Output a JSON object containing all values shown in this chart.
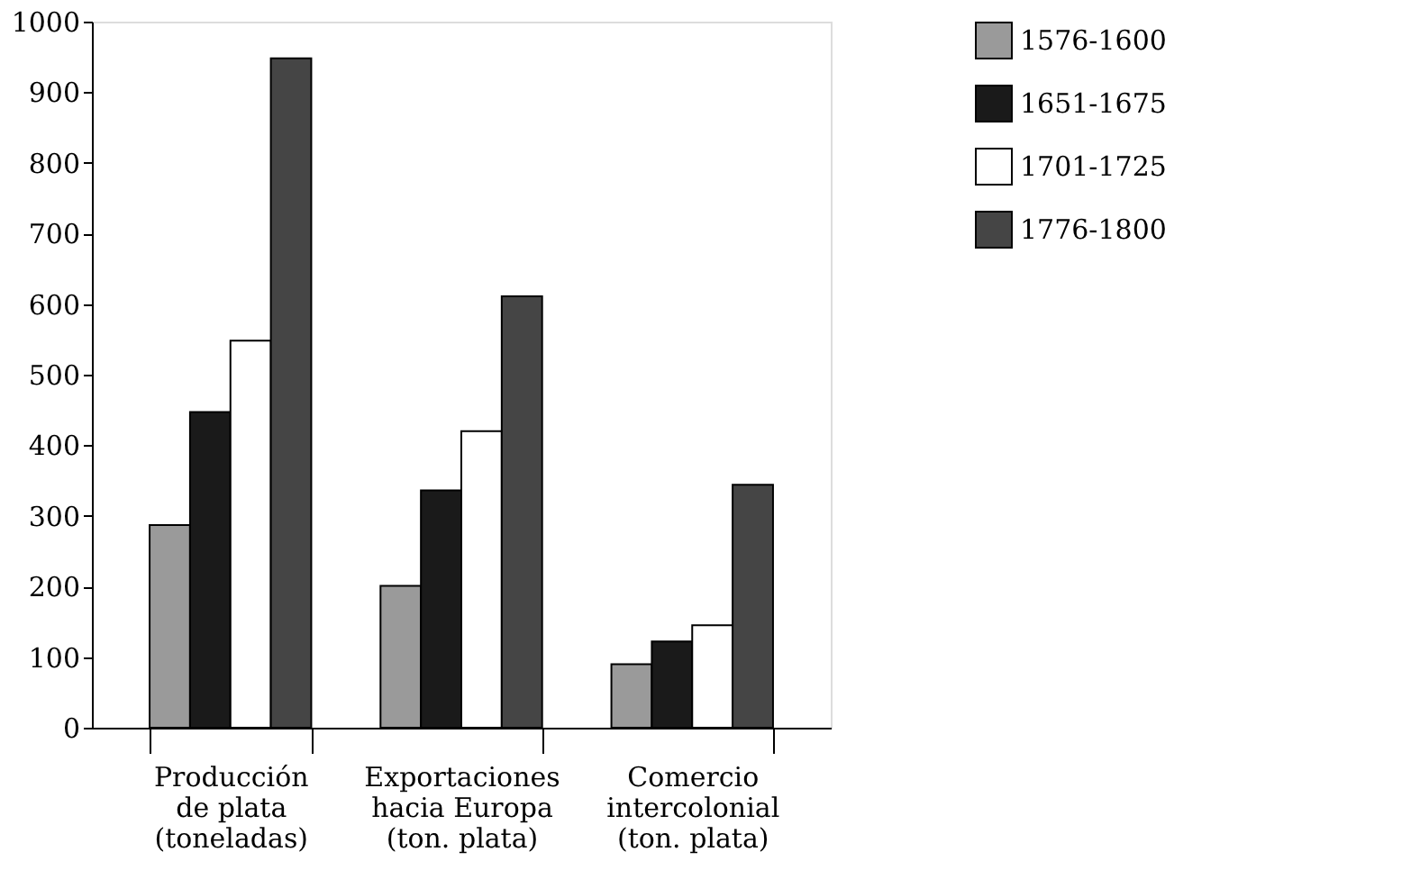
{
  "chart_data": {
    "type": "bar",
    "categories": [
      "Producción\nde plata\n(toneladas)",
      "Exportaciones\nhacia Europa\n(ton. plata)",
      "Comercio\nintercolonial\n(ton. plata)"
    ],
    "series": [
      {
        "name": "1576-1600",
        "color": "#9a9a9a",
        "values": [
          287,
          201,
          90
        ]
      },
      {
        "name": "1651-1675",
        "color": "#1a1a1a",
        "values": [
          447,
          336,
          122
        ]
      },
      {
        "name": "1701-1725",
        "color": "#ffffff",
        "values": [
          548,
          420,
          145
        ]
      },
      {
        "name": "1776-1800",
        "color": "#454545",
        "values": [
          948,
          611,
          344
        ]
      }
    ],
    "ylim": [
      0,
      1000
    ],
    "yticks": [
      0,
      100,
      200,
      300,
      400,
      500,
      600,
      700,
      800,
      900,
      1000
    ],
    "grid": false,
    "legend": "right"
  }
}
